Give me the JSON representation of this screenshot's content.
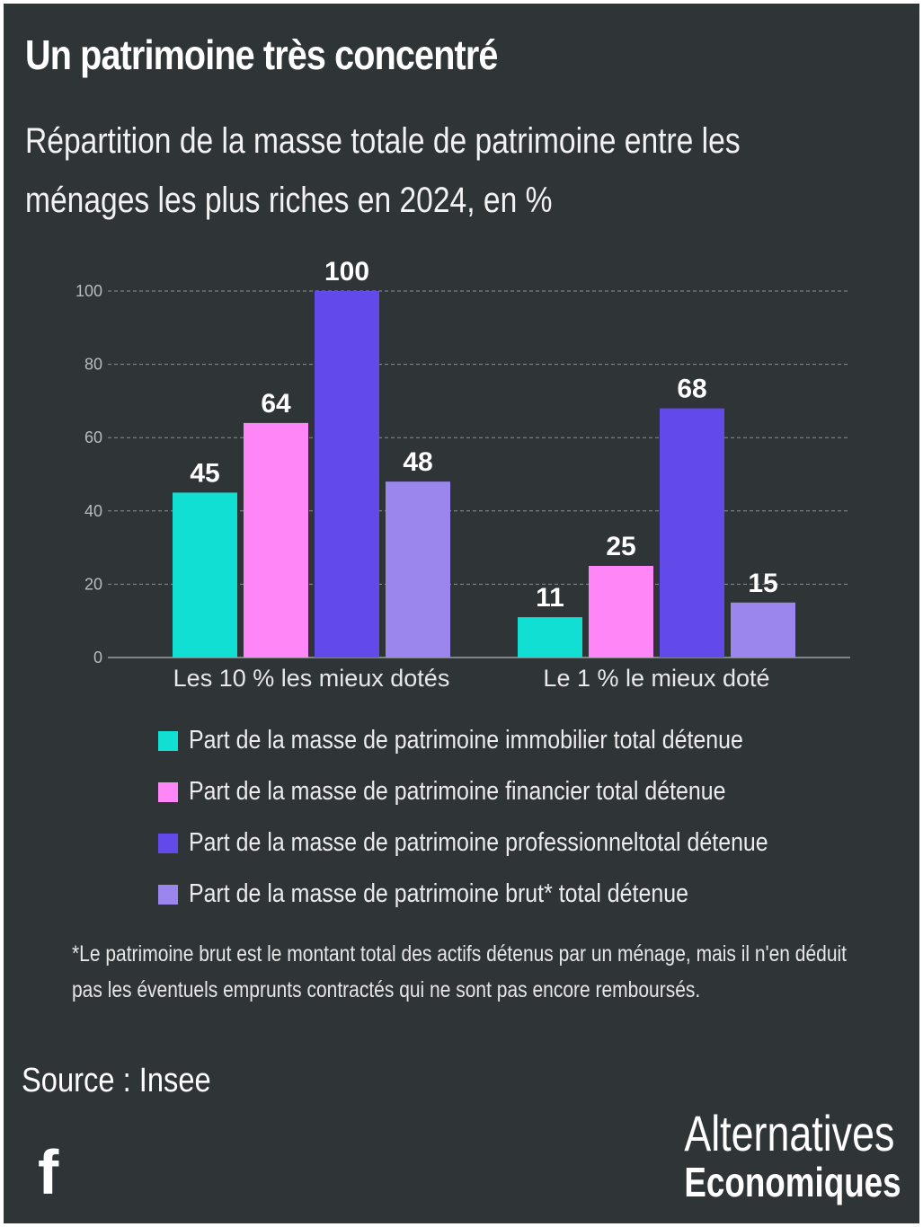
{
  "header": {
    "title": "Un patrimoine très concentré",
    "subtitle": "Répartition de la masse totale de patrimoine entre les ménages les plus riches en 2024, en %"
  },
  "chart_data": {
    "type": "bar",
    "categories": [
      "Les 10 % les mieux dotés",
      "Le 1 % le mieux doté"
    ],
    "series": [
      {
        "name": "Part de la masse de patrimoine immobilier total détenue",
        "color": "#12dfd3",
        "values": [
          45,
          11
        ]
      },
      {
        "name": "Part de la masse de patrimoine financier total détenue",
        "color": "#ff86f6",
        "values": [
          64,
          25
        ]
      },
      {
        "name": "Part de la masse de patrimoine professionneltotal détenue",
        "color": "#6149ea",
        "values": [
          100,
          68
        ]
      },
      {
        "name": "Part de la masse de patrimoine brut* total détenue",
        "color": "#9a86ec",
        "values": [
          48,
          15
        ]
      }
    ],
    "yticks": [
      "0",
      "20",
      "40",
      "60",
      "80",
      "100"
    ],
    "ylim": [
      0,
      100
    ],
    "grid": true,
    "legend_position": "bottom"
  },
  "footnote": "*Le patrimoine brut est le montant total des actifs détenus par un ménage, mais il n'en déduit pas les éventuels emprunts contractés qui ne sont pas encore remboursés.",
  "source": "Source : Insee",
  "brand": {
    "line1": "Alternatives",
    "line2": "Economiques"
  },
  "social": {
    "icon": "facebook-icon",
    "glyph": "f"
  }
}
